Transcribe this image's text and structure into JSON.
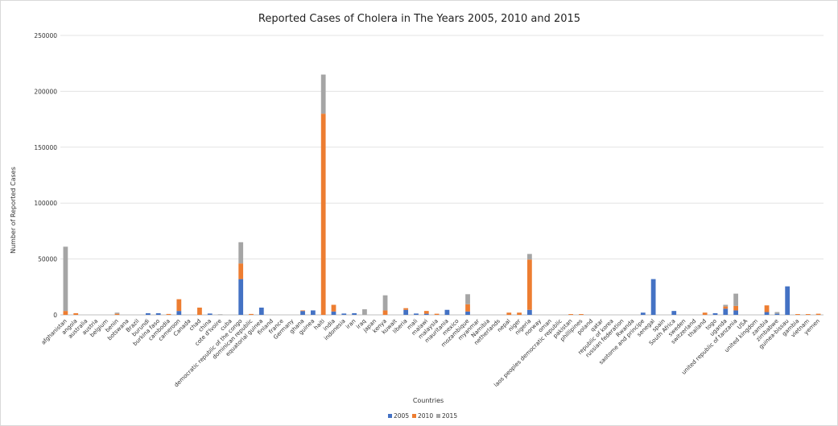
{
  "chart_data": {
    "type": "bar",
    "stacked": true,
    "title": "Reported Cases of Cholera in The Years 2005, 2010 and 2015",
    "xlabel": "Countries",
    "ylabel": "Number of Reported Cases",
    "ylim": [
      0,
      250000
    ],
    "yticks": [
      "0",
      "50000",
      "100000",
      "150000",
      "200000",
      "250000"
    ],
    "grid": true,
    "legend_position": "bottom",
    "categories": [
      "afghanistan",
      "angola",
      "australia",
      "austria",
      "belgium",
      "benin",
      "botswana",
      "Brazil",
      "burundi",
      "burkina faso",
      "cambodia",
      "cameroon",
      "Canada",
      "chad",
      "china",
      "cote d'Ivoire",
      "cuba",
      "democratic republic of the congo",
      "dominican republic",
      "equatorial guinea",
      "finland",
      "france",
      "Germany",
      "ghana",
      "guinea",
      "haiti",
      "india",
      "indonesia",
      "iran",
      "iraq",
      "japan",
      "kenya",
      "kuwait",
      "liberia",
      "mali",
      "malawi",
      "malaysia",
      "mauritania",
      "mexico",
      "mozambique",
      "myanmar",
      "Namibia",
      "netherlands",
      "nepal",
      "niger",
      "nigeria",
      "norway",
      "oman",
      "laos peoples democratic republic",
      "pakistan",
      "phillipines",
      "poland",
      "qatar",
      "republic of korea",
      "russian federation",
      "Rwanda",
      "saotome and principe",
      "senegal",
      "spain",
      "South Africa",
      "sweden",
      "switzerland",
      "thailand",
      "togo",
      "uganda",
      "united republic of tanzania",
      "USA",
      "united kingdom",
      "zambia",
      "zimbabwe",
      "guinea-bissau",
      "gambia",
      "vietnam",
      "yemen"
    ],
    "series": [
      {
        "name": "2005",
        "color": "#4472c4",
        "values": [
          0,
          0,
          0,
          0,
          0,
          0,
          0,
          0,
          1500,
          1500,
          0,
          3500,
          0,
          0,
          1200,
          0,
          0,
          32000,
          0,
          6500,
          0,
          0,
          0,
          3500,
          4000,
          0,
          3000,
          1200,
          1500,
          0,
          0,
          0,
          0,
          4500,
          1200,
          1000,
          0,
          4500,
          0,
          3000,
          0,
          0,
          0,
          0,
          0,
          4500,
          0,
          0,
          0,
          0,
          0,
          0,
          0,
          0,
          0,
          0,
          2000,
          32000,
          0,
          3500,
          0,
          0,
          0,
          1500,
          5500,
          4000,
          0,
          0,
          2500,
          1000,
          25500,
          0,
          0,
          0
        ]
      },
      {
        "name": "2010",
        "color": "#ed7d31",
        "values": [
          3500,
          1500,
          0,
          0,
          0,
          1000,
          0,
          0,
          0,
          0,
          800,
          10500,
          0,
          6500,
          0,
          0,
          0,
          14000,
          800,
          0,
          0,
          0,
          0,
          500,
          0,
          180000,
          6000,
          0,
          0,
          0,
          0,
          4000,
          0,
          1500,
          0,
          2500,
          1000,
          0,
          0,
          6500,
          0,
          0,
          0,
          2000,
          2000,
          45000,
          0,
          0,
          0,
          700,
          700,
          0,
          0,
          0,
          0,
          0,
          0,
          0,
          0,
          0,
          0,
          0,
          2000,
          0,
          2000,
          4000,
          0,
          0,
          6000,
          0,
          0,
          700,
          700,
          1000
        ]
      },
      {
        "name": "2015",
        "color": "#a5a5a5",
        "values": [
          57500,
          0,
          0,
          0,
          0,
          1000,
          0,
          0,
          0,
          0,
          0,
          0,
          0,
          0,
          0,
          500,
          0,
          19000,
          0,
          0,
          0,
          0,
          0,
          0,
          0,
          35000,
          0,
          0,
          0,
          5000,
          0,
          13500,
          0,
          0,
          0,
          0,
          0,
          0,
          0,
          9000,
          0,
          0,
          0,
          0,
          0,
          5000,
          0,
          0,
          0,
          0,
          0,
          0,
          0,
          0,
          0,
          0,
          0,
          0,
          0,
          0,
          0,
          0,
          0,
          0,
          1500,
          11000,
          0,
          0,
          0,
          1500,
          0,
          0,
          0,
          0
        ]
      }
    ]
  }
}
